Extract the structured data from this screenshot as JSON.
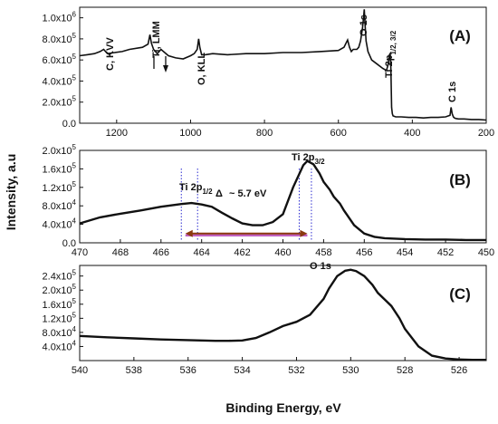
{
  "chart_data": [
    {
      "type": "line",
      "panel": "(A)",
      "xlim": [
        1300,
        200
      ],
      "ylim": [
        0,
        1100000
      ],
      "x_ticks": [
        "1200",
        "1000",
        "800",
        "600",
        "400",
        "200"
      ],
      "y_ticks": [
        {
          "mant": "0.0",
          "exp": ""
        },
        {
          "mant": "2.0x10",
          "exp": "5"
        },
        {
          "mant": "4.0x10",
          "exp": "5"
        },
        {
          "mant": "6.0x10",
          "exp": "5"
        },
        {
          "mant": "8.0x10",
          "exp": "5"
        },
        {
          "mant": "1.0x10",
          "exp": "6"
        }
      ],
      "series": [
        {
          "x": [
            1300,
            1280,
            1260,
            1245,
            1235,
            1225,
            1205,
            1185,
            1165,
            1130,
            1115,
            1110,
            1106,
            1100,
            1090,
            1085,
            1080,
            1060,
            1040,
            1020,
            1000,
            990,
            982,
            978,
            975,
            970,
            960,
            940,
            900,
            850,
            800,
            750,
            700,
            650,
            600,
            585,
            575,
            570,
            565,
            560,
            550,
            545,
            540,
            535,
            532,
            530,
            528,
            525,
            520,
            510,
            495,
            480,
            470,
            465,
            462,
            460,
            458,
            456,
            454,
            452,
            445,
            430,
            410,
            390,
            370,
            350,
            330,
            310,
            298,
            295,
            292,
            289,
            286,
            282,
            275,
            260,
            240,
            220,
            200
          ],
          "y": [
            640000,
            650000,
            660000,
            680000,
            700000,
            660000,
            670000,
            680000,
            700000,
            720000,
            750000,
            840000,
            760000,
            700000,
            660000,
            680000,
            700000,
            640000,
            620000,
            610000,
            640000,
            660000,
            700000,
            800000,
            720000,
            650000,
            650000,
            660000,
            650000,
            660000,
            660000,
            670000,
            670000,
            680000,
            690000,
            720000,
            790000,
            720000,
            680000,
            700000,
            700000,
            720000,
            780000,
            900000,
            1000000,
            1080000,
            950000,
            780000,
            680000,
            600000,
            560000,
            520000,
            500000,
            560000,
            650000,
            660000,
            520000,
            150000,
            90000,
            70000,
            60000,
            60000,
            55000,
            55000,
            50000,
            55000,
            55000,
            60000,
            75000,
            150000,
            90000,
            60000,
            50000,
            45000,
            40000,
            40000,
            35000,
            35000,
            30000
          ]
        }
      ],
      "annotations": {
        "ckvv": "C, KVV",
        "ti_lmm": "Ti, LMM",
        "o_kll": "O, KLL",
        "o1s": "O 1s",
        "ti2p_main": "Ti 2p",
        "ti2p_sub": "1/2, 3/2",
        "c1s": "C 1s"
      }
    },
    {
      "type": "line",
      "panel": "(B)",
      "xlim": [
        470,
        450
      ],
      "ylim": [
        0,
        200000
      ],
      "x_ticks": [
        "470",
        "468",
        "466",
        "464",
        "462",
        "460",
        "458",
        "456",
        "454",
        "452",
        "450"
      ],
      "y_ticks": [
        {
          "mant": "0.0",
          "exp": ""
        },
        {
          "mant": "4.0x10",
          "exp": "4"
        },
        {
          "mant": "8.0x10",
          "exp": "4"
        },
        {
          "mant": "1.2x10",
          "exp": "5"
        },
        {
          "mant": "1.6x10",
          "exp": "5"
        },
        {
          "mant": "2.0x10",
          "exp": "5"
        }
      ],
      "series": [
        {
          "x": [
            470,
            469,
            468,
            467,
            466,
            465,
            464.5,
            464,
            463.5,
            463,
            462.5,
            462,
            461.5,
            461,
            460.5,
            460,
            459.5,
            459,
            458.8,
            458.5,
            458.2,
            458,
            457.7,
            457.5,
            457.2,
            457,
            456.5,
            456,
            455.5,
            455,
            454,
            453,
            452,
            451,
            450
          ],
          "y": [
            42000,
            55000,
            63000,
            70000,
            78000,
            84000,
            86000,
            83000,
            78000,
            65000,
            53000,
            42000,
            38000,
            38000,
            45000,
            62000,
            120000,
            168000,
            177000,
            170000,
            150000,
            132000,
            115000,
            100000,
            85000,
            70000,
            38000,
            20000,
            13000,
            10000,
            8000,
            7000,
            7000,
            6000,
            6000
          ]
        }
      ],
      "annotations": {
        "ti2p12_main": "Ti 2p",
        "ti2p12_sub": "1/2",
        "ti2p32_main": "Ti 2p",
        "ti2p32_sub": "3/2",
        "delta": "Δ",
        "delta_value": "~ 5.7 eV"
      },
      "markers": {
        "dotted_lines_x": [
          465,
          464.2,
          459.2,
          458.6
        ],
        "arrow_x": [
          464.8,
          458.8
        ],
        "arrow_y": 20000
      },
      "colors": {
        "dotted": "#2a2ad0",
        "arrow": "#8b3a10",
        "band": "#c060c0"
      }
    },
    {
      "type": "line",
      "panel": "(C)",
      "xlim": [
        540,
        525
      ],
      "ylim": [
        0,
        270000
      ],
      "x_ticks": [
        "540",
        "538",
        "536",
        "534",
        "532",
        "530",
        "528",
        "526"
      ],
      "y_ticks": [
        {
          "mant": "4.0x10",
          "exp": "4"
        },
        {
          "mant": "8.0x10",
          "exp": "4"
        },
        {
          "mant": "1.2x10",
          "exp": "5"
        },
        {
          "mant": "1.6x10",
          "exp": "5"
        },
        {
          "mant": "2.0x10",
          "exp": "5"
        },
        {
          "mant": "2.4x10",
          "exp": "5"
        }
      ],
      "series": [
        {
          "x": [
            540,
            539,
            538,
            537,
            536,
            535,
            534.5,
            534,
            533.5,
            533,
            532.5,
            532,
            531.5,
            531,
            530.8,
            530.5,
            530.2,
            530,
            529.8,
            529.5,
            529.2,
            529,
            528.7,
            528.5,
            528.2,
            528,
            527.5,
            527,
            526.5,
            526,
            525.5,
            525
          ],
          "y": [
            70000,
            66000,
            63000,
            60000,
            58000,
            56000,
            56000,
            57000,
            64000,
            80000,
            98000,
            110000,
            130000,
            175000,
            205000,
            240000,
            255000,
            258000,
            254000,
            240000,
            215000,
            192000,
            170000,
            155000,
            120000,
            90000,
            40000,
            14000,
            6000,
            3000,
            2000,
            2000
          ]
        }
      ],
      "annotations": {
        "o1s": "O 1s"
      }
    }
  ],
  "axes": {
    "ylabel": "Intensity, a.u",
    "xlabel": "Binding Energy, eV"
  }
}
